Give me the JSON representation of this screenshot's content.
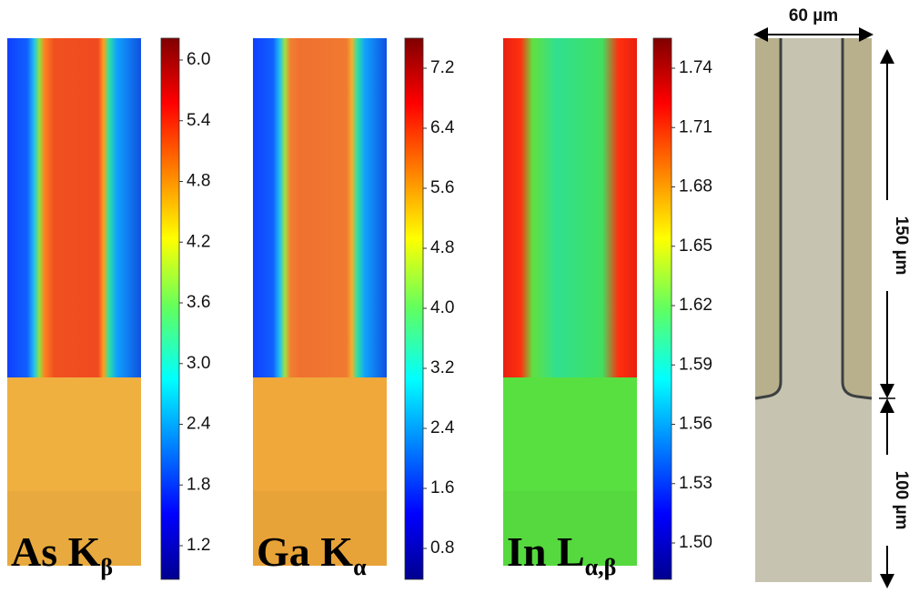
{
  "panels": [
    {
      "element": "As K",
      "line": "β",
      "ticks": [
        "6.0",
        "5.4",
        "4.8",
        "4.2",
        "3.6",
        "3.0",
        "2.4",
        "1.8",
        "1.2"
      ]
    },
    {
      "element": "Ga K",
      "line": "α",
      "ticks": [
        "7.2",
        "6.4",
        "5.6",
        "4.8",
        "4.0",
        "3.2",
        "2.4",
        "1.6",
        "0.8"
      ]
    },
    {
      "element": "In L",
      "line": "α,β",
      "ticks": [
        "1.74",
        "1.71",
        "1.68",
        "1.65",
        "1.62",
        "1.59",
        "1.56",
        "1.53",
        "1.50"
      ]
    }
  ],
  "scale": {
    "width": "60 µm",
    "upper_length": "150 µm",
    "lower_length": "100 µm"
  }
}
